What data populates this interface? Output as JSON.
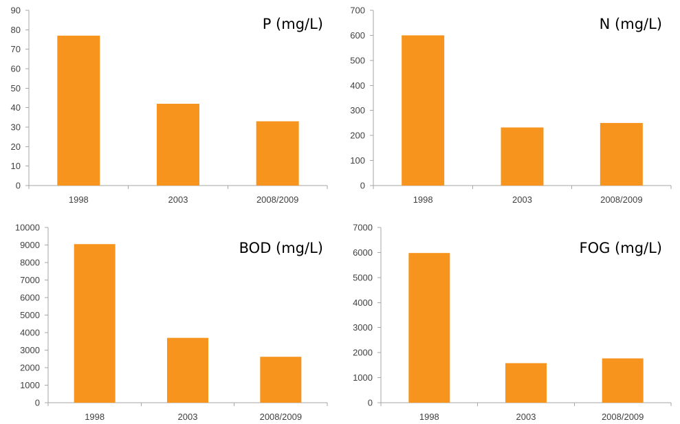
{
  "bar_color": "#F7941E",
  "axis_color": "#A6A6A6",
  "chart_data": [
    {
      "type": "bar",
      "title": "P (mg/L)",
      "categories": [
        "1998",
        "2003",
        "2008/2009"
      ],
      "values": [
        77,
        42,
        33
      ],
      "ylim": [
        0,
        90
      ],
      "yticks": [
        0,
        10,
        20,
        30,
        40,
        50,
        60,
        70,
        80,
        90
      ],
      "grid": false,
      "xlabel": "",
      "ylabel": ""
    },
    {
      "type": "bar",
      "title": "N (mg/L)",
      "categories": [
        "1998",
        "2003",
        "2008/2009"
      ],
      "values": [
        600,
        232,
        250
      ],
      "ylim": [
        0,
        700
      ],
      "yticks": [
        0,
        100,
        200,
        300,
        400,
        500,
        600,
        700
      ],
      "grid": false,
      "xlabel": "",
      "ylabel": ""
    },
    {
      "type": "bar",
      "title": "BOD (mg/L)",
      "categories": [
        "1998",
        "2003",
        "2008/2009"
      ],
      "values": [
        9050,
        3700,
        2620
      ],
      "ylim": [
        0,
        10000
      ],
      "yticks": [
        0,
        1000,
        2000,
        3000,
        4000,
        5000,
        6000,
        7000,
        8000,
        9000,
        10000
      ],
      "grid": false,
      "xlabel": "",
      "ylabel": ""
    },
    {
      "type": "bar",
      "title": "FOG (mg/L)",
      "categories": [
        "1998",
        "2003",
        "2008/2009"
      ],
      "values": [
        5980,
        1580,
        1770
      ],
      "ylim": [
        0,
        7000
      ],
      "yticks": [
        0,
        1000,
        2000,
        3000,
        4000,
        5000,
        6000,
        7000
      ],
      "grid": false,
      "xlabel": "",
      "ylabel": ""
    }
  ]
}
